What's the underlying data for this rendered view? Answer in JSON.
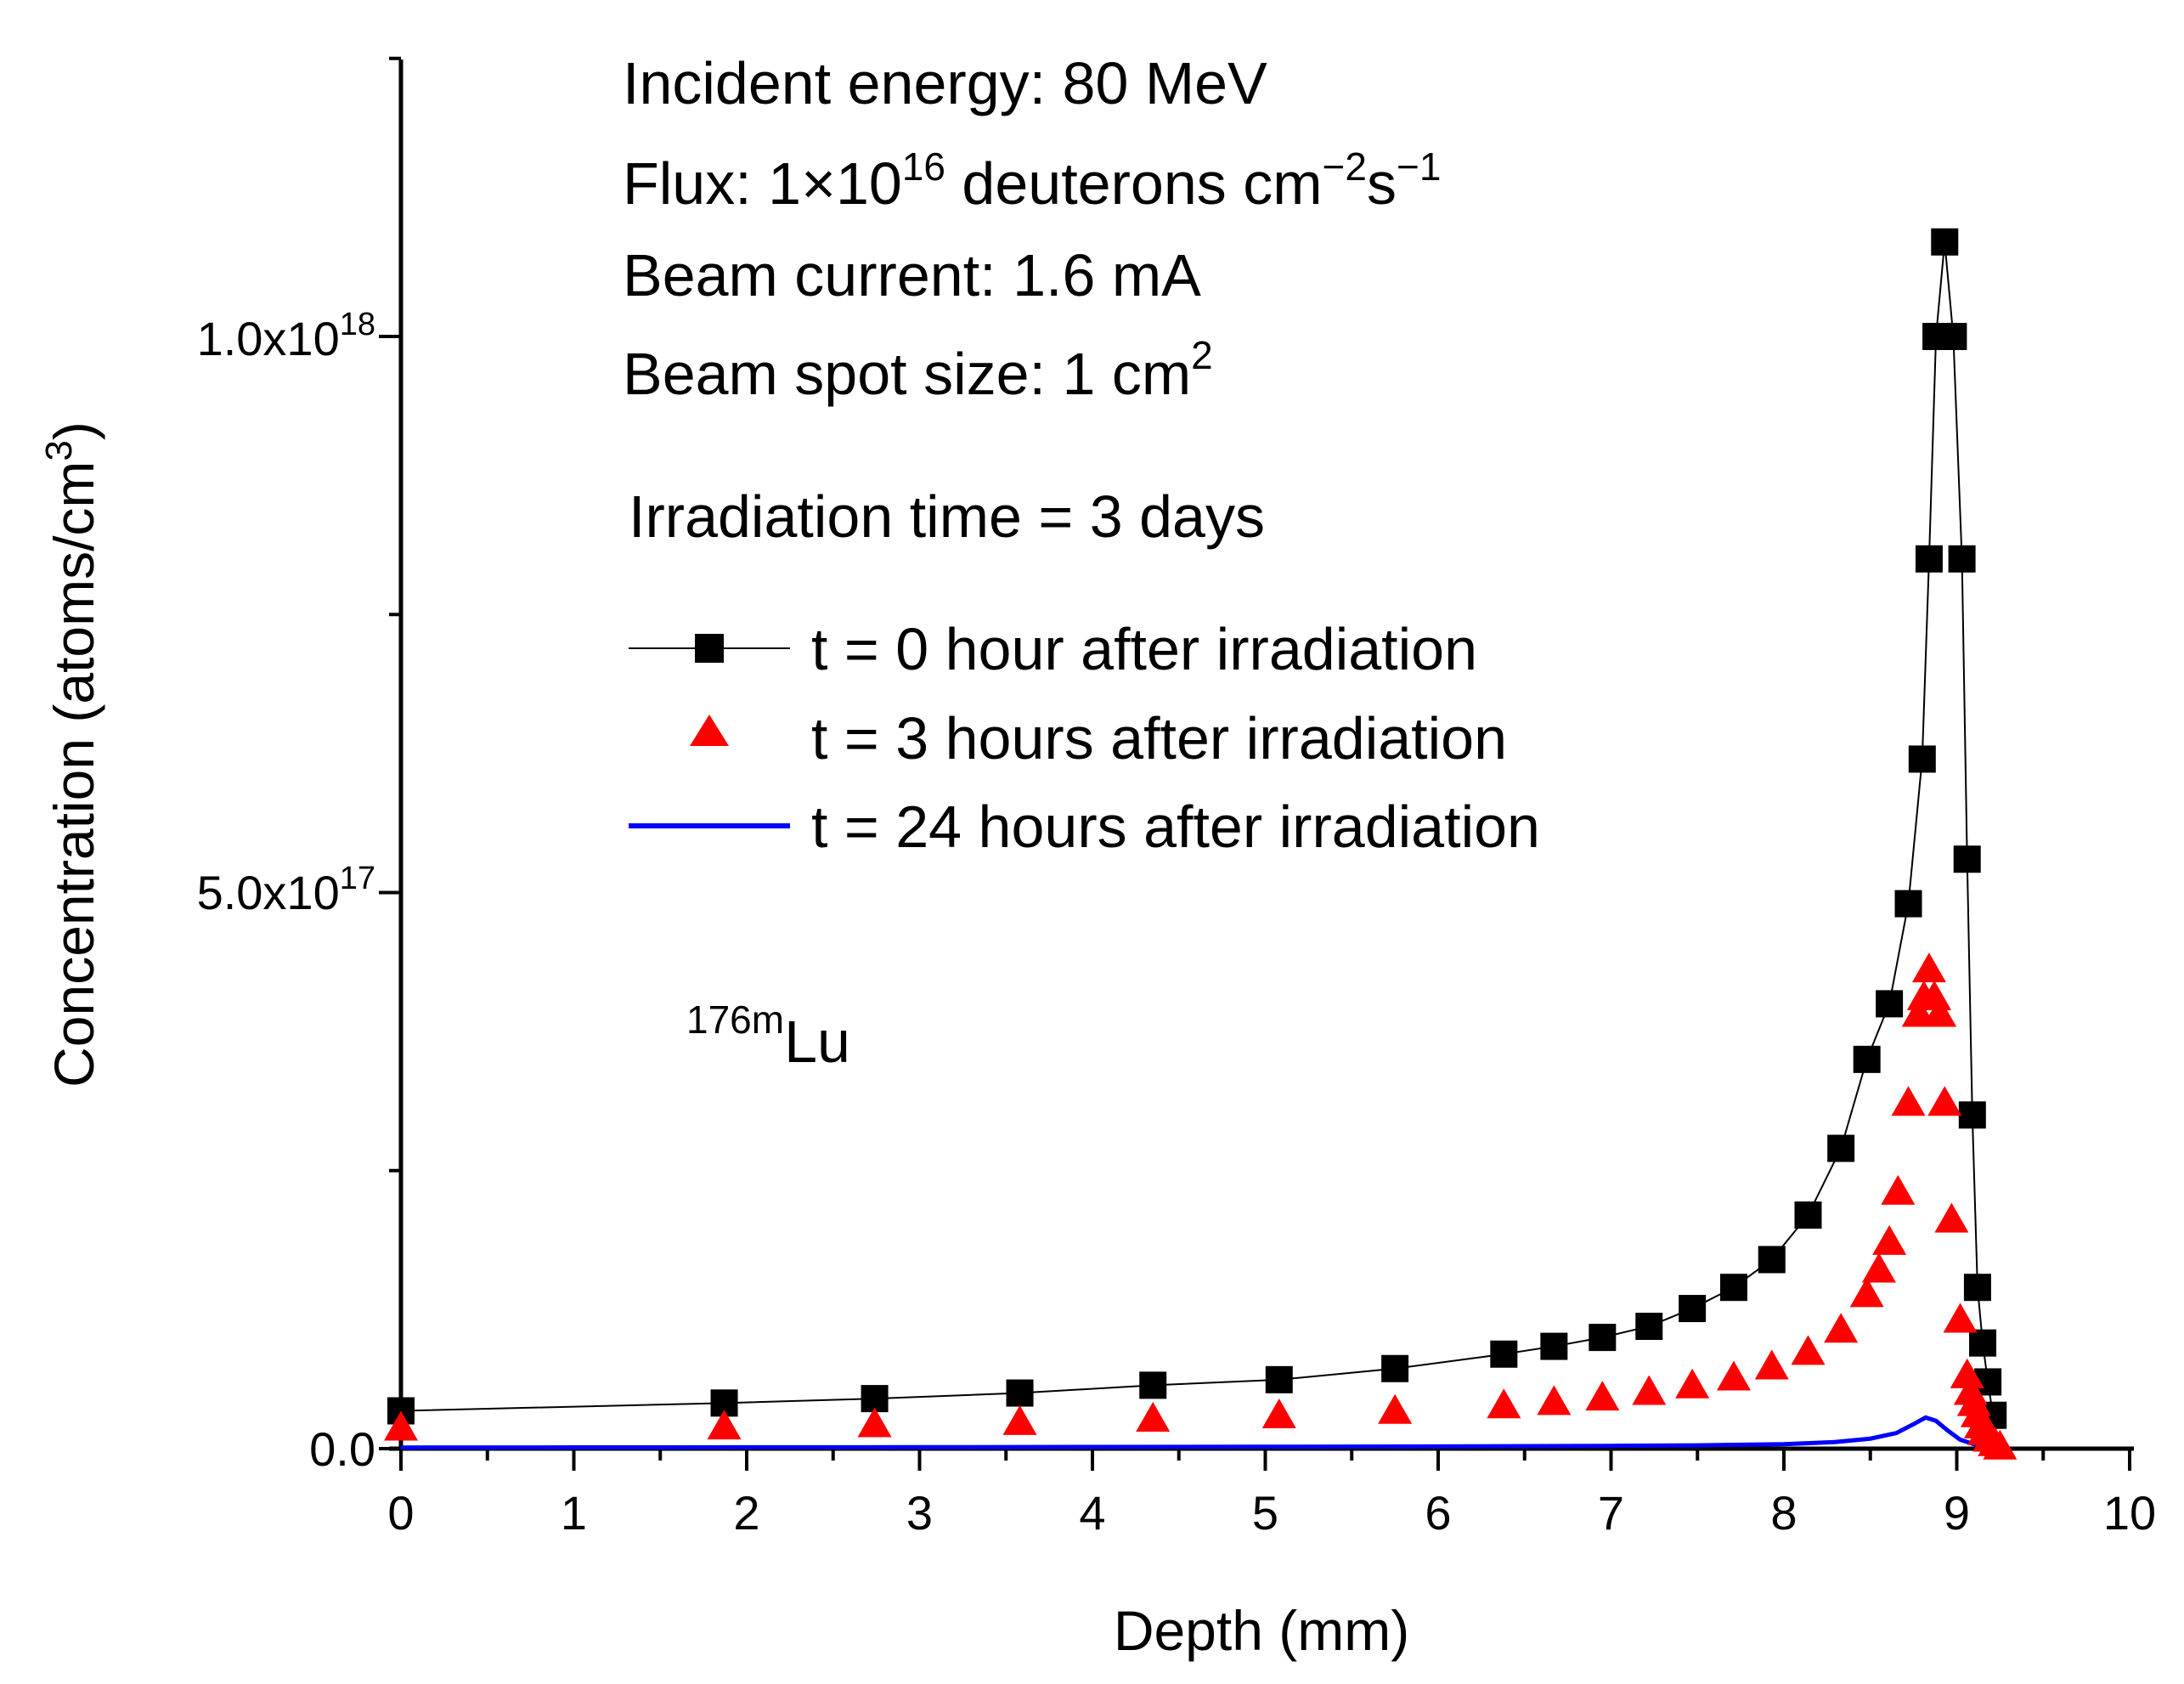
{
  "chart_data": {
    "type": "scatter",
    "title": "",
    "xlabel": "Depth (mm)",
    "ylabel": {
      "main": "Concentration (atoms/cm",
      "sup": "3",
      "close": ")"
    },
    "xlim": [
      0,
      10
    ],
    "ylim": [
      0,
      1.25e+18
    ],
    "xticks": [
      "0",
      "1",
      "2",
      "3",
      "4",
      "5",
      "6",
      "7",
      "8",
      "9",
      "10"
    ],
    "yticks": [
      {
        "value": 0,
        "base": "0.0",
        "exp": ""
      },
      {
        "value": 5e+17,
        "base": "5.0x10",
        "exp": "17"
      },
      {
        "value": 1e+18,
        "base": "1.0x10",
        "exp": "18"
      }
    ],
    "annotations": {
      "energy": "Incident energy: 80 MeV",
      "flux": {
        "pre": "Flux: 1×10",
        "exp1": "16",
        "mid": " deuterons cm",
        "exp2": "−2",
        "mid2": "s",
        "exp3": "−1"
      },
      "current": "Beam current: 1.6 mA",
      "spot": {
        "pre": "Beam spot size: 1 cm",
        "exp": "2"
      },
      "irradiation": "Irradiation time = 3 days",
      "isotope": {
        "sup": "176m",
        "base": "Lu"
      }
    },
    "legend_position": "top-center",
    "series": [
      {
        "name": "t = 0 hour after irradiation",
        "marker": "square",
        "color": "#000000",
        "x": [
          0,
          1.87,
          2.74,
          3.58,
          4.35,
          5.08,
          5.75,
          6.38,
          6.67,
          6.95,
          7.22,
          7.47,
          7.71,
          7.93,
          8.14,
          8.33,
          8.48,
          8.61,
          8.72,
          8.8,
          8.84,
          8.88,
          8.93,
          8.98,
          9.03,
          9.06,
          9.09,
          9.12,
          9.15,
          9.18,
          9.21
        ],
        "y": [
          3.4e+16,
          4.1e+16,
          4.5e+16,
          5e+16,
          5.7e+16,
          6.2e+16,
          7.2e+16,
          8.5e+16,
          9.2e+16,
          1e+17,
          1.1e+17,
          1.26e+17,
          1.45e+17,
          1.7e+17,
          2.1e+17,
          2.7e+17,
          3.5e+17,
          4e+17,
          4.9e+17,
          6.2e+17,
          8e+17,
          1e+18,
          1.085e+18,
          1e+18,
          8e+17,
          5.3e+17,
          3e+17,
          1.45e+17,
          9.5e+16,
          6e+16,
          3e+16
        ]
      },
      {
        "name": "t = 3 hours after irradiation",
        "marker": "triangle",
        "color": "#ff0000",
        "x": [
          0,
          1.87,
          2.74,
          3.58,
          4.35,
          5.08,
          5.75,
          6.38,
          6.67,
          6.95,
          7.22,
          7.47,
          7.71,
          7.93,
          8.14,
          8.33,
          8.48,
          8.55,
          8.61,
          8.66,
          8.72,
          8.78,
          8.81,
          8.84,
          8.87,
          8.9,
          8.93,
          8.97,
          9.02,
          9.06,
          9.08,
          9.1,
          9.12,
          9.14,
          9.16,
          9.19,
          9.22,
          9.25
        ],
        "y": [
          1.8e+16,
          1.9e+16,
          2.1e+16,
          2.3e+16,
          2.6e+16,
          2.9e+16,
          3.3e+16,
          3.8e+16,
          4.1e+16,
          4.5e+16,
          5e+16,
          5.6e+16,
          6.3e+16,
          7.3e+16,
          8.6e+16,
          1.06e+17,
          1.38e+17,
          1.6e+17,
          1.85e+17,
          2.3e+17,
          3.1e+17,
          3.9e+17,
          4.05e+17,
          4.3e+17,
          4.05e+17,
          3.9e+17,
          3.1e+17,
          2.05e+17,
          1.15e+17,
          6.5e+16,
          5e+16,
          4e+16,
          3e+16,
          2e+16,
          1.4e+16,
          8000000000000000.0,
          4000000000000000.0,
          1000000000000000.0
        ]
      },
      {
        "name": "t = 24 hours after irradiation",
        "marker": "line",
        "color": "#0000ff",
        "x": [
          0,
          1,
          2,
          3,
          4,
          5,
          6,
          7,
          7.5,
          8,
          8.3,
          8.5,
          8.65,
          8.75,
          8.82,
          8.88,
          8.95,
          9.02,
          9.1,
          9.2,
          9.25
        ],
        "y": [
          1000000000000000.0,
          1100000000000000.0,
          1200000000000000.0,
          1300000000000000.0,
          1500000000000000.0,
          1700000000000000.0,
          2000000000000000.0,
          2500000000000000.0,
          3000000000000000.0,
          4000000000000000.0,
          6000000000000000.0,
          9000000000000000.0,
          1.4e+16,
          2.2e+16,
          2.8e+16,
          2.5e+16,
          1.6e+16,
          8000000000000000.0,
          4000000000000000.0,
          1000000000000000.0,
          0
        ]
      }
    ]
  }
}
